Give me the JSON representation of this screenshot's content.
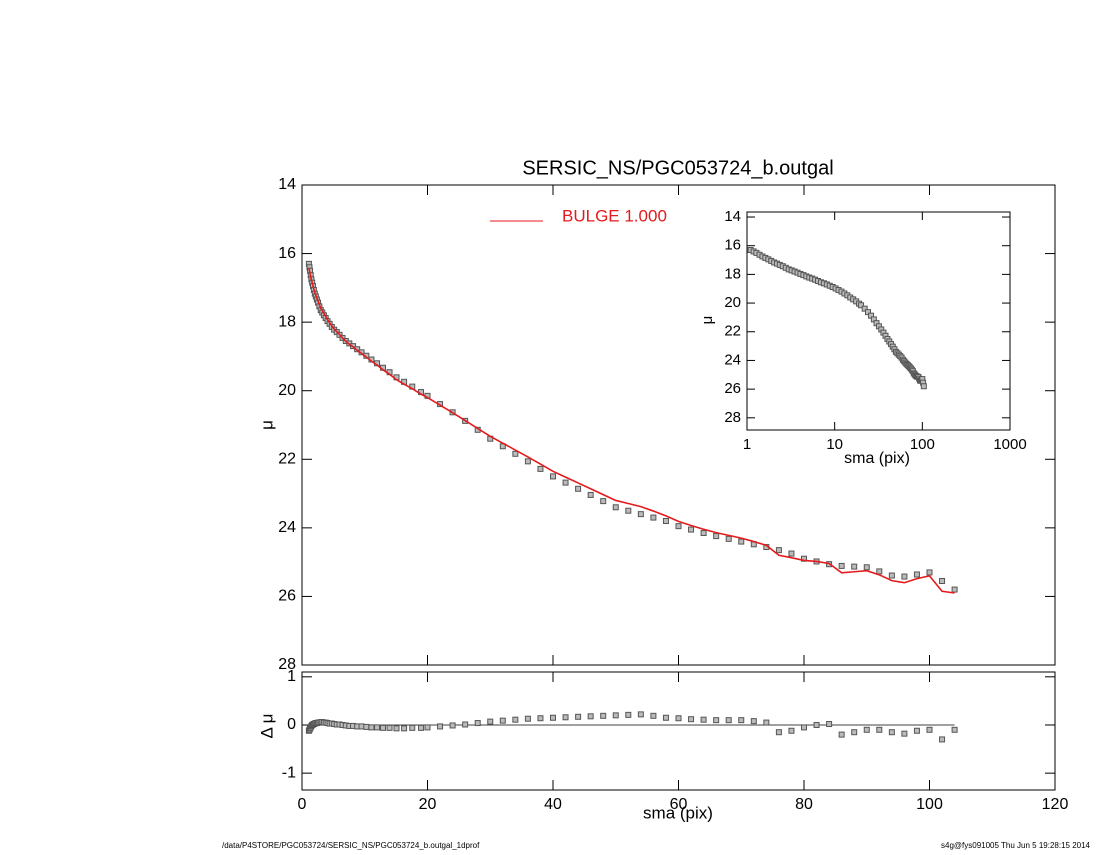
{
  "chart_data": [
    {
      "type": "scatter",
      "title": "SERSIC_NS/PGC053724_b.outgal",
      "ylabel": "μ",
      "x": [
        1.1,
        1.19,
        1.28,
        1.39,
        1.5,
        1.62,
        1.75,
        1.89,
        2.04,
        2.2,
        2.37,
        2.56,
        2.77,
        2.99,
        3.23,
        3.49,
        3.77,
        4.07,
        4.4,
        4.75,
        5.13,
        5.54,
        5.98,
        6.46,
        6.98,
        7.54,
        8.14,
        8.79,
        9.49,
        10.25,
        11.07,
        11.96,
        12.91,
        13.95,
        15.06,
        16.27,
        17.57,
        18.97,
        20,
        22,
        24,
        26,
        28,
        30,
        32,
        34,
        36,
        38,
        40,
        42,
        44,
        46,
        48,
        50,
        52,
        54,
        56,
        58,
        60,
        62,
        64,
        66,
        68,
        70,
        72,
        74,
        76,
        78,
        80,
        82,
        84,
        86,
        88,
        90,
        92,
        94,
        96,
        98,
        100,
        102,
        104
      ],
      "series": [
        {
          "color": "#555555",
          "marker": "square",
          "values": [
            16.3,
            16.4,
            16.5,
            16.63,
            16.75,
            16.85,
            16.95,
            17.06,
            17.17,
            17.25,
            17.34,
            17.43,
            17.54,
            17.65,
            17.72,
            17.8,
            17.88,
            17.97,
            18.05,
            18.14,
            18.22,
            18.29,
            18.37,
            18.46,
            18.55,
            18.62,
            18.7,
            18.79,
            18.88,
            18.98,
            19.09,
            19.2,
            19.33,
            19.46,
            19.61,
            19.74,
            19.88,
            20.04,
            20.15,
            20.39,
            20.63,
            20.88,
            21.14,
            21.4,
            21.62,
            21.84,
            22.06,
            22.28,
            22.5,
            22.68,
            22.86,
            23.04,
            23.22,
            23.4,
            23.5,
            23.6,
            23.7,
            23.8,
            23.95,
            24.05,
            24.15,
            24.24,
            24.32,
            24.4,
            24.48,
            24.56,
            24.65,
            24.75,
            24.9,
            24.98,
            25.06,
            25.11,
            25.13,
            25.15,
            25.27,
            25.39,
            25.42,
            25.36,
            25.3,
            25.55,
            25.8
          ]
        },
        {
          "name": "BULGE  1.000",
          "color": "#e41a1c",
          "style": "line",
          "values": [
            16.42,
            16.5,
            16.57,
            16.68,
            16.77,
            16.85,
            16.94,
            17.04,
            17.14,
            17.21,
            17.3,
            17.38,
            17.49,
            17.59,
            17.66,
            17.75,
            17.83,
            17.93,
            18.02,
            18.11,
            18.2,
            18.28,
            18.36,
            18.46,
            18.56,
            18.64,
            18.72,
            18.82,
            18.91,
            19.02,
            19.14,
            19.25,
            19.39,
            19.52,
            19.68,
            19.81,
            19.94,
            20.1,
            20.2,
            20.42,
            20.64,
            20.87,
            21.1,
            21.33,
            21.53,
            21.73,
            21.93,
            22.14,
            22.35,
            22.52,
            22.69,
            22.86,
            23.03,
            23.2,
            23.29,
            23.38,
            23.51,
            23.65,
            23.81,
            23.93,
            24.04,
            24.14,
            24.22,
            24.3,
            24.4,
            24.51,
            24.8,
            24.87,
            24.95,
            24.98,
            25.04,
            25.31,
            25.28,
            25.25,
            25.37,
            25.54,
            25.6,
            25.48,
            25.4,
            25.85,
            25.9
          ]
        }
      ],
      "xlim": [
        0,
        120
      ],
      "xticks": [
        0,
        20,
        40,
        60,
        80,
        100,
        120
      ],
      "xtick_labels": false,
      "ylim": [
        14,
        28
      ],
      "yticks": [
        14,
        16,
        18,
        20,
        22,
        24,
        26,
        28
      ],
      "y_inverted": true
    },
    {
      "type": "scatter",
      "xlabel": "sma (pix)",
      "ylabel": "Δ μ",
      "x": [
        1.1,
        1.19,
        1.28,
        1.39,
        1.5,
        1.62,
        1.75,
        1.89,
        2.04,
        2.2,
        2.37,
        2.56,
        2.77,
        2.99,
        3.23,
        3.49,
        3.77,
        4.07,
        4.4,
        4.75,
        5.13,
        5.54,
        5.98,
        6.46,
        6.98,
        7.54,
        8.14,
        8.79,
        9.49,
        10.25,
        11.07,
        11.96,
        12.91,
        13.95,
        15.06,
        16.27,
        17.57,
        18.97,
        20,
        22,
        24,
        26,
        28,
        30,
        32,
        34,
        36,
        38,
        40,
        42,
        44,
        46,
        48,
        50,
        52,
        54,
        56,
        58,
        60,
        62,
        64,
        66,
        68,
        70,
        72,
        74,
        76,
        78,
        80,
        82,
        84,
        86,
        88,
        90,
        92,
        94,
        96,
        98,
        100,
        102,
        104
      ],
      "values": [
        -0.12,
        -0.1,
        -0.07,
        -0.05,
        -0.02,
        0.0,
        0.01,
        0.02,
        0.03,
        0.04,
        0.04,
        0.05,
        0.05,
        0.06,
        0.06,
        0.05,
        0.05,
        0.04,
        0.03,
        0.03,
        0.02,
        0.01,
        0.01,
        0.0,
        -0.01,
        -0.02,
        -0.02,
        -0.03,
        -0.03,
        -0.04,
        -0.05,
        -0.05,
        -0.06,
        -0.06,
        -0.07,
        -0.07,
        -0.06,
        -0.06,
        -0.05,
        -0.03,
        -0.01,
        0.01,
        0.04,
        0.07,
        0.09,
        0.11,
        0.13,
        0.14,
        0.15,
        0.16,
        0.17,
        0.18,
        0.19,
        0.2,
        0.21,
        0.22,
        0.19,
        0.15,
        0.14,
        0.12,
        0.11,
        0.1,
        0.1,
        0.1,
        0.08,
        0.05,
        -0.15,
        -0.12,
        -0.05,
        0.0,
        0.02,
        -0.2,
        -0.15,
        -0.1,
        -0.1,
        -0.15,
        -0.18,
        -0.12,
        -0.1,
        -0.3,
        -0.1
      ],
      "color": "#555555",
      "hline": 0,
      "xlim": [
        0,
        120
      ],
      "xticks": [
        0,
        20,
        40,
        60,
        80,
        100,
        120
      ],
      "ylim": [
        -1.35,
        1.1
      ],
      "yticks": [
        -1,
        0,
        1
      ]
    },
    {
      "type": "scatter",
      "xlabel": "sma (pix)",
      "ylabel": "μ",
      "log_x": true,
      "x": [
        1.1,
        1.19,
        1.28,
        1.39,
        1.5,
        1.62,
        1.75,
        1.89,
        2.04,
        2.2,
        2.37,
        2.56,
        2.77,
        2.99,
        3.23,
        3.49,
        3.77,
        4.07,
        4.4,
        4.75,
        5.13,
        5.54,
        5.98,
        6.46,
        6.98,
        7.54,
        8.14,
        8.79,
        9.49,
        10.25,
        11.07,
        11.96,
        12.91,
        13.95,
        15.06,
        16.27,
        17.57,
        18.97,
        20,
        22,
        24,
        26,
        28,
        30,
        32,
        34,
        36,
        38,
        40,
        42,
        44,
        46,
        48,
        50,
        52,
        54,
        56,
        58,
        60,
        62,
        64,
        66,
        68,
        70,
        72,
        74,
        76,
        78,
        80,
        82,
        84,
        86,
        88,
        90,
        92,
        94,
        96,
        98,
        100,
        102,
        104
      ],
      "values": [
        16.3,
        16.4,
        16.5,
        16.63,
        16.75,
        16.85,
        16.95,
        17.06,
        17.17,
        17.25,
        17.34,
        17.43,
        17.54,
        17.65,
        17.72,
        17.8,
        17.88,
        17.97,
        18.05,
        18.14,
        18.22,
        18.29,
        18.37,
        18.46,
        18.55,
        18.62,
        18.7,
        18.79,
        18.88,
        18.98,
        19.09,
        19.2,
        19.33,
        19.46,
        19.61,
        19.74,
        19.88,
        20.04,
        20.15,
        20.39,
        20.63,
        20.88,
        21.14,
        21.4,
        21.62,
        21.84,
        22.06,
        22.28,
        22.5,
        22.68,
        22.86,
        23.04,
        23.22,
        23.4,
        23.5,
        23.6,
        23.7,
        23.8,
        23.95,
        24.05,
        24.15,
        24.24,
        24.32,
        24.4,
        24.48,
        24.56,
        24.65,
        24.75,
        24.9,
        24.98,
        25.06,
        25.11,
        25.13,
        25.15,
        25.27,
        25.39,
        25.42,
        25.36,
        25.3,
        25.55,
        25.8
      ],
      "color": "#555555",
      "xlim": [
        1,
        1000
      ],
      "xticks": [
        1,
        10,
        100,
        1000
      ],
      "ylim": [
        13.65,
        28.85
      ],
      "yticks": [
        14,
        16,
        18,
        20,
        22,
        24,
        26,
        28
      ],
      "y_inverted": true
    }
  ],
  "footer": {
    "left": "/data/P4STORE/PGC053724/SERSIC_NS/PGC053724_b.outgal_1dprof",
    "right": "s4g@fys091005  Thu Jun  5 19:28:15 2014"
  }
}
